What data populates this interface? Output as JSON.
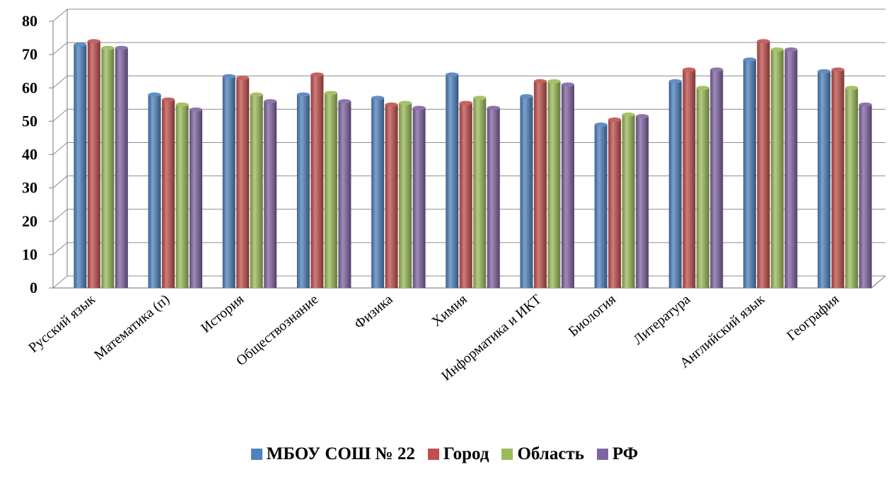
{
  "chart_data": {
    "type": "bar",
    "title": "",
    "xlabel": "",
    "ylabel": "",
    "ylim": [
      0,
      80
    ],
    "yticks": [
      0,
      10,
      20,
      30,
      40,
      50,
      60,
      70,
      80
    ],
    "grid": true,
    "legend_position": "bottom",
    "categories": [
      "Русский язык",
      "Математика (п)",
      "История",
      "Обществознание",
      "Физика",
      "Химия",
      "Информатика и ИКТ",
      "Биология",
      "Литература",
      "Английский язык",
      "География"
    ],
    "series": [
      {
        "name": "МБОУ СОШ № 22",
        "color": "#4f81bd",
        "values": [
          73,
          58,
          63.5,
          58,
          57,
          64,
          57.5,
          49,
          62,
          68.5,
          65
        ]
      },
      {
        "name": "Город",
        "color": "#c0504d",
        "values": [
          74,
          56.5,
          63,
          64,
          55,
          55.5,
          62,
          50.5,
          65.5,
          74,
          65.5
        ]
      },
      {
        "name": "Область",
        "color": "#9bbb59",
        "values": [
          72,
          55,
          58,
          58.5,
          55.5,
          57,
          62,
          52,
          60,
          71.5,
          60
        ]
      },
      {
        "name": "РФ",
        "color": "#8064a2",
        "values": [
          72,
          53.5,
          56,
          56,
          54,
          54,
          61,
          51.5,
          65.5,
          71.5,
          55
        ]
      }
    ]
  }
}
